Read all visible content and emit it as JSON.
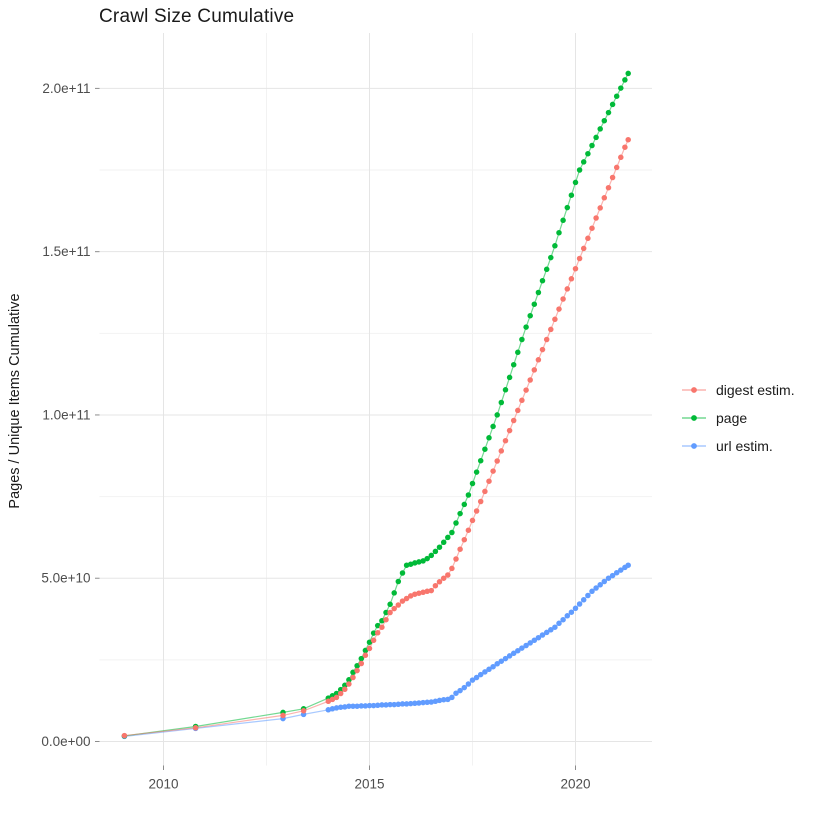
{
  "title": "Crawl Size Cumulative",
  "chart_data": {
    "type": "line",
    "title": "Crawl Size Cumulative",
    "xlabel": "",
    "ylabel": "Pages / Unique Items Cumulative",
    "legend_position": "right",
    "grid": true,
    "background": "#ffffff",
    "gridline_major_color": "#e5e5e5",
    "gridline_minor_color": "#f2f2f2",
    "tick_color": "#8c8c8c",
    "tick_label_color": "#4d4d4d",
    "value_unit": 1000000000,
    "xlim": [
      2008.4,
      2021.9
    ],
    "ylim_e9": [
      -7.5,
      217
    ],
    "x_ticks": {
      "major": [
        2010,
        2015,
        2020
      ],
      "labels": [
        "2010",
        "2015",
        "2020"
      ],
      "minor": [
        2012.5,
        2017.5
      ]
    },
    "y_ticks": {
      "major": [
        0,
        50,
        100,
        150,
        200
      ],
      "labels": [
        "0.0e+00",
        "5.0e+10",
        "1.0e+11",
        "1.5e+11",
        "2.0e+11"
      ],
      "minor": [
        25,
        75,
        125,
        175
      ]
    },
    "series": [
      {
        "name": "digest estim.",
        "color": "#F8766D",
        "points": [
          [
            2009.05,
            1.8
          ],
          [
            2010.78,
            4.2
          ],
          [
            2012.9,
            8.0
          ],
          [
            2013.4,
            9.4
          ],
          [
            2014.0,
            12.3
          ],
          [
            2014.1,
            12.9
          ],
          [
            2014.2,
            13.5
          ],
          [
            2014.3,
            14.7
          ],
          [
            2014.4,
            16.0
          ],
          [
            2014.5,
            17.6
          ],
          [
            2014.6,
            19.6
          ],
          [
            2014.7,
            21.7
          ],
          [
            2014.8,
            23.9
          ],
          [
            2014.9,
            26.4
          ],
          [
            2015.0,
            28.5
          ],
          [
            2015.1,
            31.0
          ],
          [
            2015.2,
            33.3
          ],
          [
            2015.3,
            35.0
          ],
          [
            2015.4,
            37.3
          ],
          [
            2015.5,
            39.5
          ],
          [
            2015.6,
            40.7
          ],
          [
            2015.7,
            41.8
          ],
          [
            2015.8,
            43.0
          ],
          [
            2015.9,
            43.8
          ],
          [
            2016.0,
            44.6
          ],
          [
            2016.1,
            45.1
          ],
          [
            2016.2,
            45.4
          ],
          [
            2016.3,
            45.7
          ],
          [
            2016.4,
            46.0
          ],
          [
            2016.5,
            46.2
          ],
          [
            2016.6,
            47.7
          ],
          [
            2016.7,
            48.9
          ],
          [
            2016.8,
            50.0
          ],
          [
            2016.9,
            51.0
          ],
          [
            2017.0,
            53.0
          ],
          [
            2017.1,
            55.9
          ],
          [
            2017.2,
            58.9
          ],
          [
            2017.3,
            61.8
          ],
          [
            2017.4,
            64.7
          ],
          [
            2017.5,
            67.7
          ],
          [
            2017.6,
            70.6
          ],
          [
            2017.7,
            73.5
          ],
          [
            2017.8,
            76.6
          ],
          [
            2017.9,
            79.7
          ],
          [
            2018.0,
            82.8
          ],
          [
            2018.1,
            85.9
          ],
          [
            2018.2,
            89.0
          ],
          [
            2018.3,
            92.1
          ],
          [
            2018.4,
            95.2
          ],
          [
            2018.5,
            98.3
          ],
          [
            2018.6,
            101.4
          ],
          [
            2018.7,
            104.5
          ],
          [
            2018.8,
            107.6
          ],
          [
            2018.9,
            110.7
          ],
          [
            2019.0,
            113.8
          ],
          [
            2019.1,
            116.9
          ],
          [
            2019.2,
            120.0
          ],
          [
            2019.3,
            123.1
          ],
          [
            2019.4,
            126.2
          ],
          [
            2019.5,
            129.3
          ],
          [
            2019.6,
            132.4
          ],
          [
            2019.7,
            135.5
          ],
          [
            2019.8,
            138.6
          ],
          [
            2019.9,
            141.7
          ],
          [
            2020.0,
            144.8
          ],
          [
            2020.1,
            147.9
          ],
          [
            2020.2,
            151.0
          ],
          [
            2020.3,
            154.1
          ],
          [
            2020.4,
            157.2
          ],
          [
            2020.5,
            160.3
          ],
          [
            2020.6,
            163.4
          ],
          [
            2020.7,
            166.5
          ],
          [
            2020.8,
            169.6
          ],
          [
            2020.9,
            172.7
          ],
          [
            2021.0,
            175.8
          ],
          [
            2021.1,
            178.9
          ],
          [
            2021.2,
            182.0
          ],
          [
            2021.28,
            184.3
          ]
        ]
      },
      {
        "name": "page",
        "color": "#00BA38",
        "points": [
          [
            2009.05,
            1.7
          ],
          [
            2010.78,
            4.6
          ],
          [
            2012.9,
            8.9
          ],
          [
            2013.4,
            10.0
          ],
          [
            2014.0,
            13.3
          ],
          [
            2014.1,
            14.0
          ],
          [
            2014.2,
            14.7
          ],
          [
            2014.3,
            15.9
          ],
          [
            2014.4,
            17.2
          ],
          [
            2014.5,
            18.9
          ],
          [
            2014.6,
            21.2
          ],
          [
            2014.7,
            23.2
          ],
          [
            2014.8,
            25.4
          ],
          [
            2014.9,
            27.9
          ],
          [
            2015.0,
            30.4
          ],
          [
            2015.1,
            33.2
          ],
          [
            2015.2,
            35.5
          ],
          [
            2015.3,
            37.0
          ],
          [
            2015.4,
            39.5
          ],
          [
            2015.5,
            42.0
          ],
          [
            2015.6,
            45.5
          ],
          [
            2015.7,
            49.0
          ],
          [
            2015.8,
            51.6
          ],
          [
            2015.9,
            54.0
          ],
          [
            2016.0,
            54.3
          ],
          [
            2016.1,
            54.7
          ],
          [
            2016.2,
            55.0
          ],
          [
            2016.3,
            55.3
          ],
          [
            2016.4,
            56.0
          ],
          [
            2016.5,
            57.0
          ],
          [
            2016.6,
            58.2
          ],
          [
            2016.7,
            59.5
          ],
          [
            2016.8,
            61.0
          ],
          [
            2016.9,
            62.5
          ],
          [
            2017.0,
            64.0
          ],
          [
            2017.1,
            66.9
          ],
          [
            2017.2,
            69.8
          ],
          [
            2017.3,
            72.6
          ],
          [
            2017.4,
            75.5
          ],
          [
            2017.5,
            79.0
          ],
          [
            2017.6,
            82.5
          ],
          [
            2017.7,
            86.0
          ],
          [
            2017.8,
            89.5
          ],
          [
            2017.9,
            93.0
          ],
          [
            2018.0,
            96.5
          ],
          [
            2018.1,
            100.0
          ],
          [
            2018.2,
            103.8
          ],
          [
            2018.3,
            107.7
          ],
          [
            2018.4,
            111.5
          ],
          [
            2018.5,
            115.4
          ],
          [
            2018.6,
            119.2
          ],
          [
            2018.7,
            123.1
          ],
          [
            2018.8,
            126.9
          ],
          [
            2018.9,
            130.4
          ],
          [
            2019.0,
            133.9
          ],
          [
            2019.1,
            137.5
          ],
          [
            2019.2,
            141.1
          ],
          [
            2019.3,
            144.6
          ],
          [
            2019.4,
            148.2
          ],
          [
            2019.5,
            151.8
          ],
          [
            2019.6,
            155.8
          ],
          [
            2019.7,
            159.6
          ],
          [
            2019.8,
            163.5
          ],
          [
            2019.9,
            167.3
          ],
          [
            2020.0,
            171.2
          ],
          [
            2020.1,
            175.0
          ],
          [
            2020.2,
            177.5
          ],
          [
            2020.3,
            180.0
          ],
          [
            2020.4,
            182.5
          ],
          [
            2020.5,
            185.0
          ],
          [
            2020.6,
            187.6
          ],
          [
            2020.7,
            190.1
          ],
          [
            2020.8,
            192.6
          ],
          [
            2020.9,
            195.1
          ],
          [
            2021.0,
            197.6
          ],
          [
            2021.1,
            200.1
          ],
          [
            2021.2,
            202.6
          ],
          [
            2021.28,
            204.6
          ]
        ]
      },
      {
        "name": "url estim.",
        "color": "#619CFF",
        "points": [
          [
            2009.05,
            1.55
          ],
          [
            2010.78,
            4.0
          ],
          [
            2012.9,
            7.0
          ],
          [
            2013.4,
            8.3
          ],
          [
            2014.0,
            9.7
          ],
          [
            2014.1,
            10.0
          ],
          [
            2014.2,
            10.3
          ],
          [
            2014.3,
            10.5
          ],
          [
            2014.4,
            10.6
          ],
          [
            2014.5,
            10.8
          ],
          [
            2014.6,
            10.8
          ],
          [
            2014.7,
            10.8
          ],
          [
            2014.8,
            10.9
          ],
          [
            2014.9,
            10.9
          ],
          [
            2015.0,
            11.0
          ],
          [
            2015.1,
            11.0
          ],
          [
            2015.2,
            11.1
          ],
          [
            2015.3,
            11.2
          ],
          [
            2015.4,
            11.2
          ],
          [
            2015.5,
            11.3
          ],
          [
            2015.6,
            11.3
          ],
          [
            2015.7,
            11.4
          ],
          [
            2015.8,
            11.5
          ],
          [
            2015.9,
            11.5
          ],
          [
            2016.0,
            11.6
          ],
          [
            2016.1,
            11.7
          ],
          [
            2016.2,
            11.8
          ],
          [
            2016.3,
            11.9
          ],
          [
            2016.4,
            12.0
          ],
          [
            2016.5,
            12.1
          ],
          [
            2016.6,
            12.3
          ],
          [
            2016.7,
            12.6
          ],
          [
            2016.8,
            12.8
          ],
          [
            2016.9,
            12.9
          ],
          [
            2017.0,
            13.5
          ],
          [
            2017.1,
            14.8
          ],
          [
            2017.2,
            15.6
          ],
          [
            2017.3,
            16.5
          ],
          [
            2017.4,
            17.6
          ],
          [
            2017.5,
            18.8
          ],
          [
            2017.6,
            19.6
          ],
          [
            2017.7,
            20.5
          ],
          [
            2017.8,
            21.3
          ],
          [
            2017.9,
            22.1
          ],
          [
            2018.0,
            22.9
          ],
          [
            2018.1,
            23.8
          ],
          [
            2018.2,
            24.6
          ],
          [
            2018.3,
            25.4
          ],
          [
            2018.4,
            26.2
          ],
          [
            2018.5,
            27.0
          ],
          [
            2018.6,
            27.8
          ],
          [
            2018.7,
            28.6
          ],
          [
            2018.8,
            29.4
          ],
          [
            2018.9,
            30.2
          ],
          [
            2019.0,
            31.0
          ],
          [
            2019.1,
            31.8
          ],
          [
            2019.2,
            32.6
          ],
          [
            2019.3,
            33.4
          ],
          [
            2019.4,
            34.2
          ],
          [
            2019.5,
            35.0
          ],
          [
            2019.6,
            36.2
          ],
          [
            2019.7,
            37.3
          ],
          [
            2019.8,
            38.5
          ],
          [
            2019.9,
            39.6
          ],
          [
            2020.0,
            40.8
          ],
          [
            2020.1,
            42.1
          ],
          [
            2020.2,
            43.4
          ],
          [
            2020.3,
            44.7
          ],
          [
            2020.4,
            46.0
          ],
          [
            2020.5,
            47.0
          ],
          [
            2020.6,
            48.0
          ],
          [
            2020.7,
            49.0
          ],
          [
            2020.8,
            50.0
          ],
          [
            2020.9,
            50.8
          ],
          [
            2021.0,
            51.7
          ],
          [
            2021.1,
            52.5
          ],
          [
            2021.2,
            53.3
          ],
          [
            2021.28,
            54.0
          ]
        ]
      }
    ]
  }
}
